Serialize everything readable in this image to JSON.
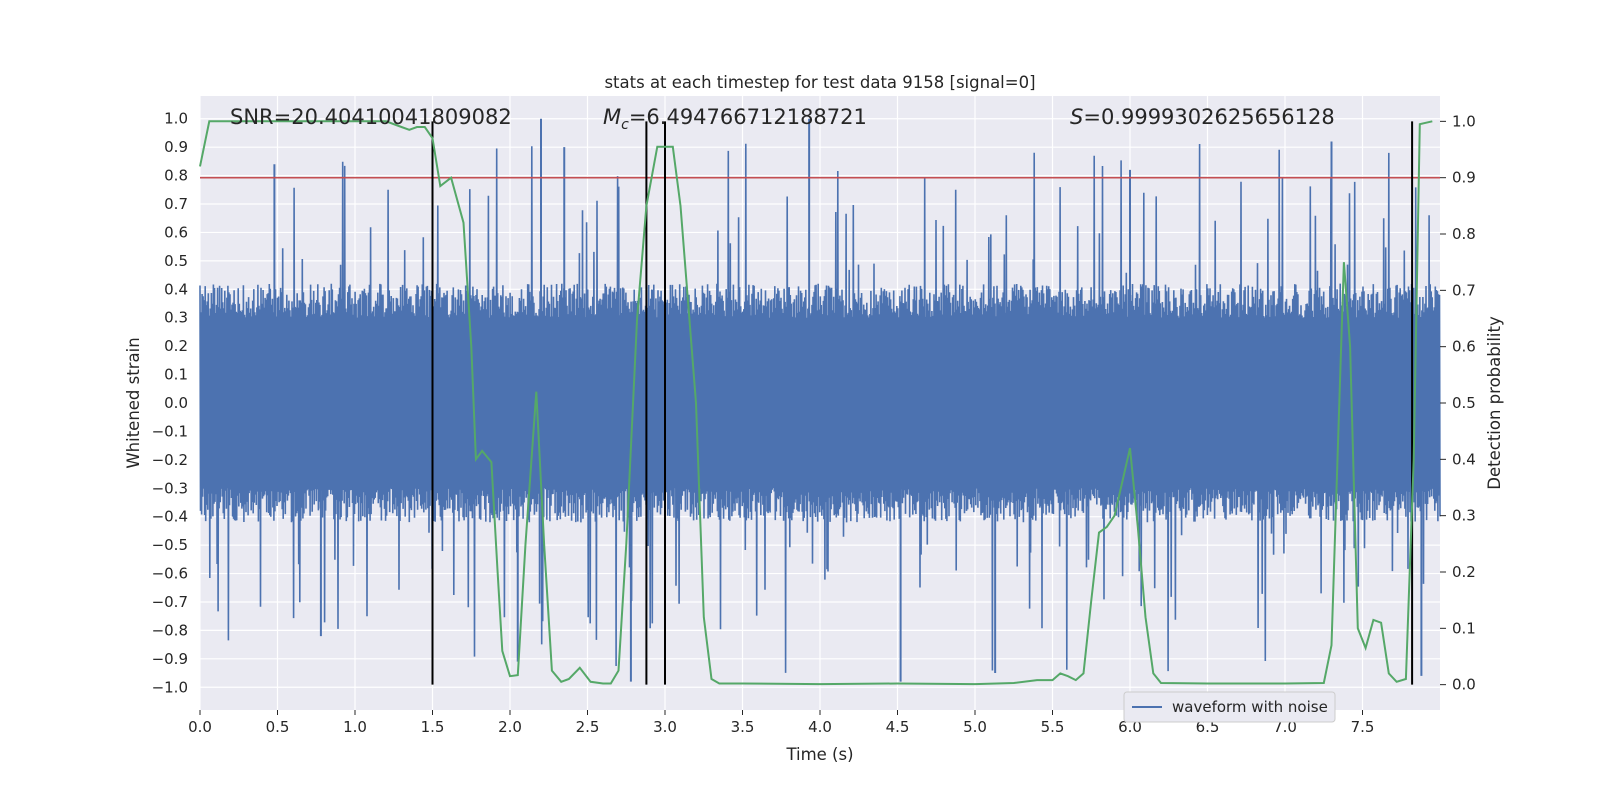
{
  "chart_data": {
    "type": "line",
    "title": "stats at each timestep for test data 9158 [signal=0]",
    "xlabel": "Time (s)",
    "ylabel": "Whitened strain",
    "y2label": "Detection probability",
    "xlim": [
      0,
      8
    ],
    "ylim": [
      -1.08,
      1.08
    ],
    "y2lim": [
      -0.045,
      1.045
    ],
    "xticks": [
      "0.0",
      "0.5",
      "1.0",
      "1.5",
      "2.0",
      "2.5",
      "3.0",
      "3.5",
      "4.0",
      "4.5",
      "5.0",
      "5.5",
      "6.0",
      "6.5",
      "7.0",
      "7.5"
    ],
    "yticks": [
      "1.0",
      "0.9",
      "0.8",
      "0.7",
      "0.6",
      "0.5",
      "0.4",
      "0.3",
      "0.2",
      "0.1",
      "0.0",
      "−0.1",
      "−0.2",
      "−0.3",
      "−0.4",
      "−0.5",
      "−0.6",
      "−0.7",
      "−0.8",
      "−0.9",
      "−1.0"
    ],
    "y2ticks": [
      "1.0",
      "0.9",
      "0.8",
      "0.7",
      "0.6",
      "0.5",
      "0.4",
      "0.3",
      "0.2",
      "0.1",
      "0.0"
    ],
    "annotations": {
      "snr": "SNR=20.40410041809082",
      "mc_symbol": "M",
      "mc_sub": "c",
      "mc_value": "=6.494766712188721",
      "s_symbol": "S",
      "s_value": "=0.9999302625656128"
    },
    "legend": {
      "label": "waveform with noise",
      "position": "lower-right"
    },
    "threshold": {
      "value": 0.9,
      "axis": "right",
      "color": "#c44e52"
    },
    "vertical_lines": [
      1.5,
      2.88,
      3.0,
      7.82
    ],
    "colors": {
      "waveform": "#4c72b0",
      "probability": "#55a868",
      "threshold": "#c44e52",
      "vlines": "#000000",
      "background": "#eaeaf2",
      "grid": "#ffffff"
    },
    "series": [
      {
        "name": "waveform with noise",
        "axis": "left",
        "note": "dense noisy strain time series, amplitude mostly within ±0.4 with spikes to ±1.0",
        "core_amplitude": 0.4,
        "spike_peaks": [
          {
            "t": 0.48,
            "v": 0.84
          },
          {
            "t": 0.78,
            "v": -0.82
          },
          {
            "t": 2.2,
            "v": 1.0
          },
          {
            "t": 2.05,
            "v": -0.91
          },
          {
            "t": 2.35,
            "v": 0.9
          },
          {
            "t": 2.78,
            "v": -0.98
          },
          {
            "t": 3.93,
            "v": 1.0
          },
          {
            "t": 4.52,
            "v": -0.98
          },
          {
            "t": 5.13,
            "v": -0.95
          },
          {
            "t": 6.0,
            "v": 0.82
          },
          {
            "t": 7.3,
            "v": 0.92
          },
          {
            "t": 7.88,
            "v": -0.96
          }
        ]
      },
      {
        "name": "detection probability",
        "axis": "right",
        "points": [
          [
            0.0,
            0.92
          ],
          [
            0.06,
            1.0
          ],
          [
            0.2,
            1.0
          ],
          [
            0.4,
            1.0
          ],
          [
            0.6,
            1.0
          ],
          [
            0.8,
            1.0
          ],
          [
            1.0,
            1.0
          ],
          [
            1.2,
            1.0
          ],
          [
            1.3,
            0.99
          ],
          [
            1.35,
            0.985
          ],
          [
            1.4,
            0.99
          ],
          [
            1.45,
            0.99
          ],
          [
            1.5,
            0.97
          ],
          [
            1.55,
            0.885
          ],
          [
            1.62,
            0.9
          ],
          [
            1.7,
            0.82
          ],
          [
            1.75,
            0.6
          ],
          [
            1.78,
            0.4
          ],
          [
            1.82,
            0.415
          ],
          [
            1.88,
            0.395
          ],
          [
            1.92,
            0.2
          ],
          [
            1.95,
            0.06
          ],
          [
            2.0,
            0.015
          ],
          [
            2.05,
            0.017
          ],
          [
            2.1,
            0.25
          ],
          [
            2.17,
            0.52
          ],
          [
            2.22,
            0.25
          ],
          [
            2.27,
            0.025
          ],
          [
            2.33,
            0.005
          ],
          [
            2.38,
            0.01
          ],
          [
            2.45,
            0.03
          ],
          [
            2.52,
            0.005
          ],
          [
            2.6,
            0.002
          ],
          [
            2.65,
            0.002
          ],
          [
            2.7,
            0.025
          ],
          [
            2.75,
            0.25
          ],
          [
            2.82,
            0.65
          ],
          [
            2.88,
            0.85
          ],
          [
            2.95,
            0.955
          ],
          [
            3.0,
            0.955
          ],
          [
            3.05,
            0.955
          ],
          [
            3.1,
            0.85
          ],
          [
            3.2,
            0.5
          ],
          [
            3.25,
            0.12
          ],
          [
            3.3,
            0.01
          ],
          [
            3.35,
            0.002
          ],
          [
            3.5,
            0.002
          ],
          [
            4.0,
            0.001
          ],
          [
            4.5,
            0.002
          ],
          [
            5.0,
            0.001
          ],
          [
            5.25,
            0.003
          ],
          [
            5.4,
            0.008
          ],
          [
            5.5,
            0.008
          ],
          [
            5.55,
            0.02
          ],
          [
            5.6,
            0.015
          ],
          [
            5.65,
            0.008
          ],
          [
            5.7,
            0.02
          ],
          [
            5.75,
            0.15
          ],
          [
            5.8,
            0.27
          ],
          [
            5.85,
            0.28
          ],
          [
            5.9,
            0.3
          ],
          [
            5.95,
            0.36
          ],
          [
            6.0,
            0.42
          ],
          [
            6.05,
            0.28
          ],
          [
            6.1,
            0.12
          ],
          [
            6.15,
            0.02
          ],
          [
            6.2,
            0.003
          ],
          [
            6.5,
            0.002
          ],
          [
            7.0,
            0.002
          ],
          [
            7.25,
            0.003
          ],
          [
            7.3,
            0.07
          ],
          [
            7.35,
            0.5
          ],
          [
            7.38,
            0.75
          ],
          [
            7.42,
            0.6
          ],
          [
            7.47,
            0.1
          ],
          [
            7.52,
            0.065
          ],
          [
            7.57,
            0.115
          ],
          [
            7.62,
            0.11
          ],
          [
            7.67,
            0.02
          ],
          [
            7.72,
            0.005
          ],
          [
            7.78,
            0.01
          ],
          [
            7.83,
            0.4
          ],
          [
            7.87,
            0.995
          ],
          [
            7.95,
            1.0
          ]
        ]
      }
    ]
  }
}
